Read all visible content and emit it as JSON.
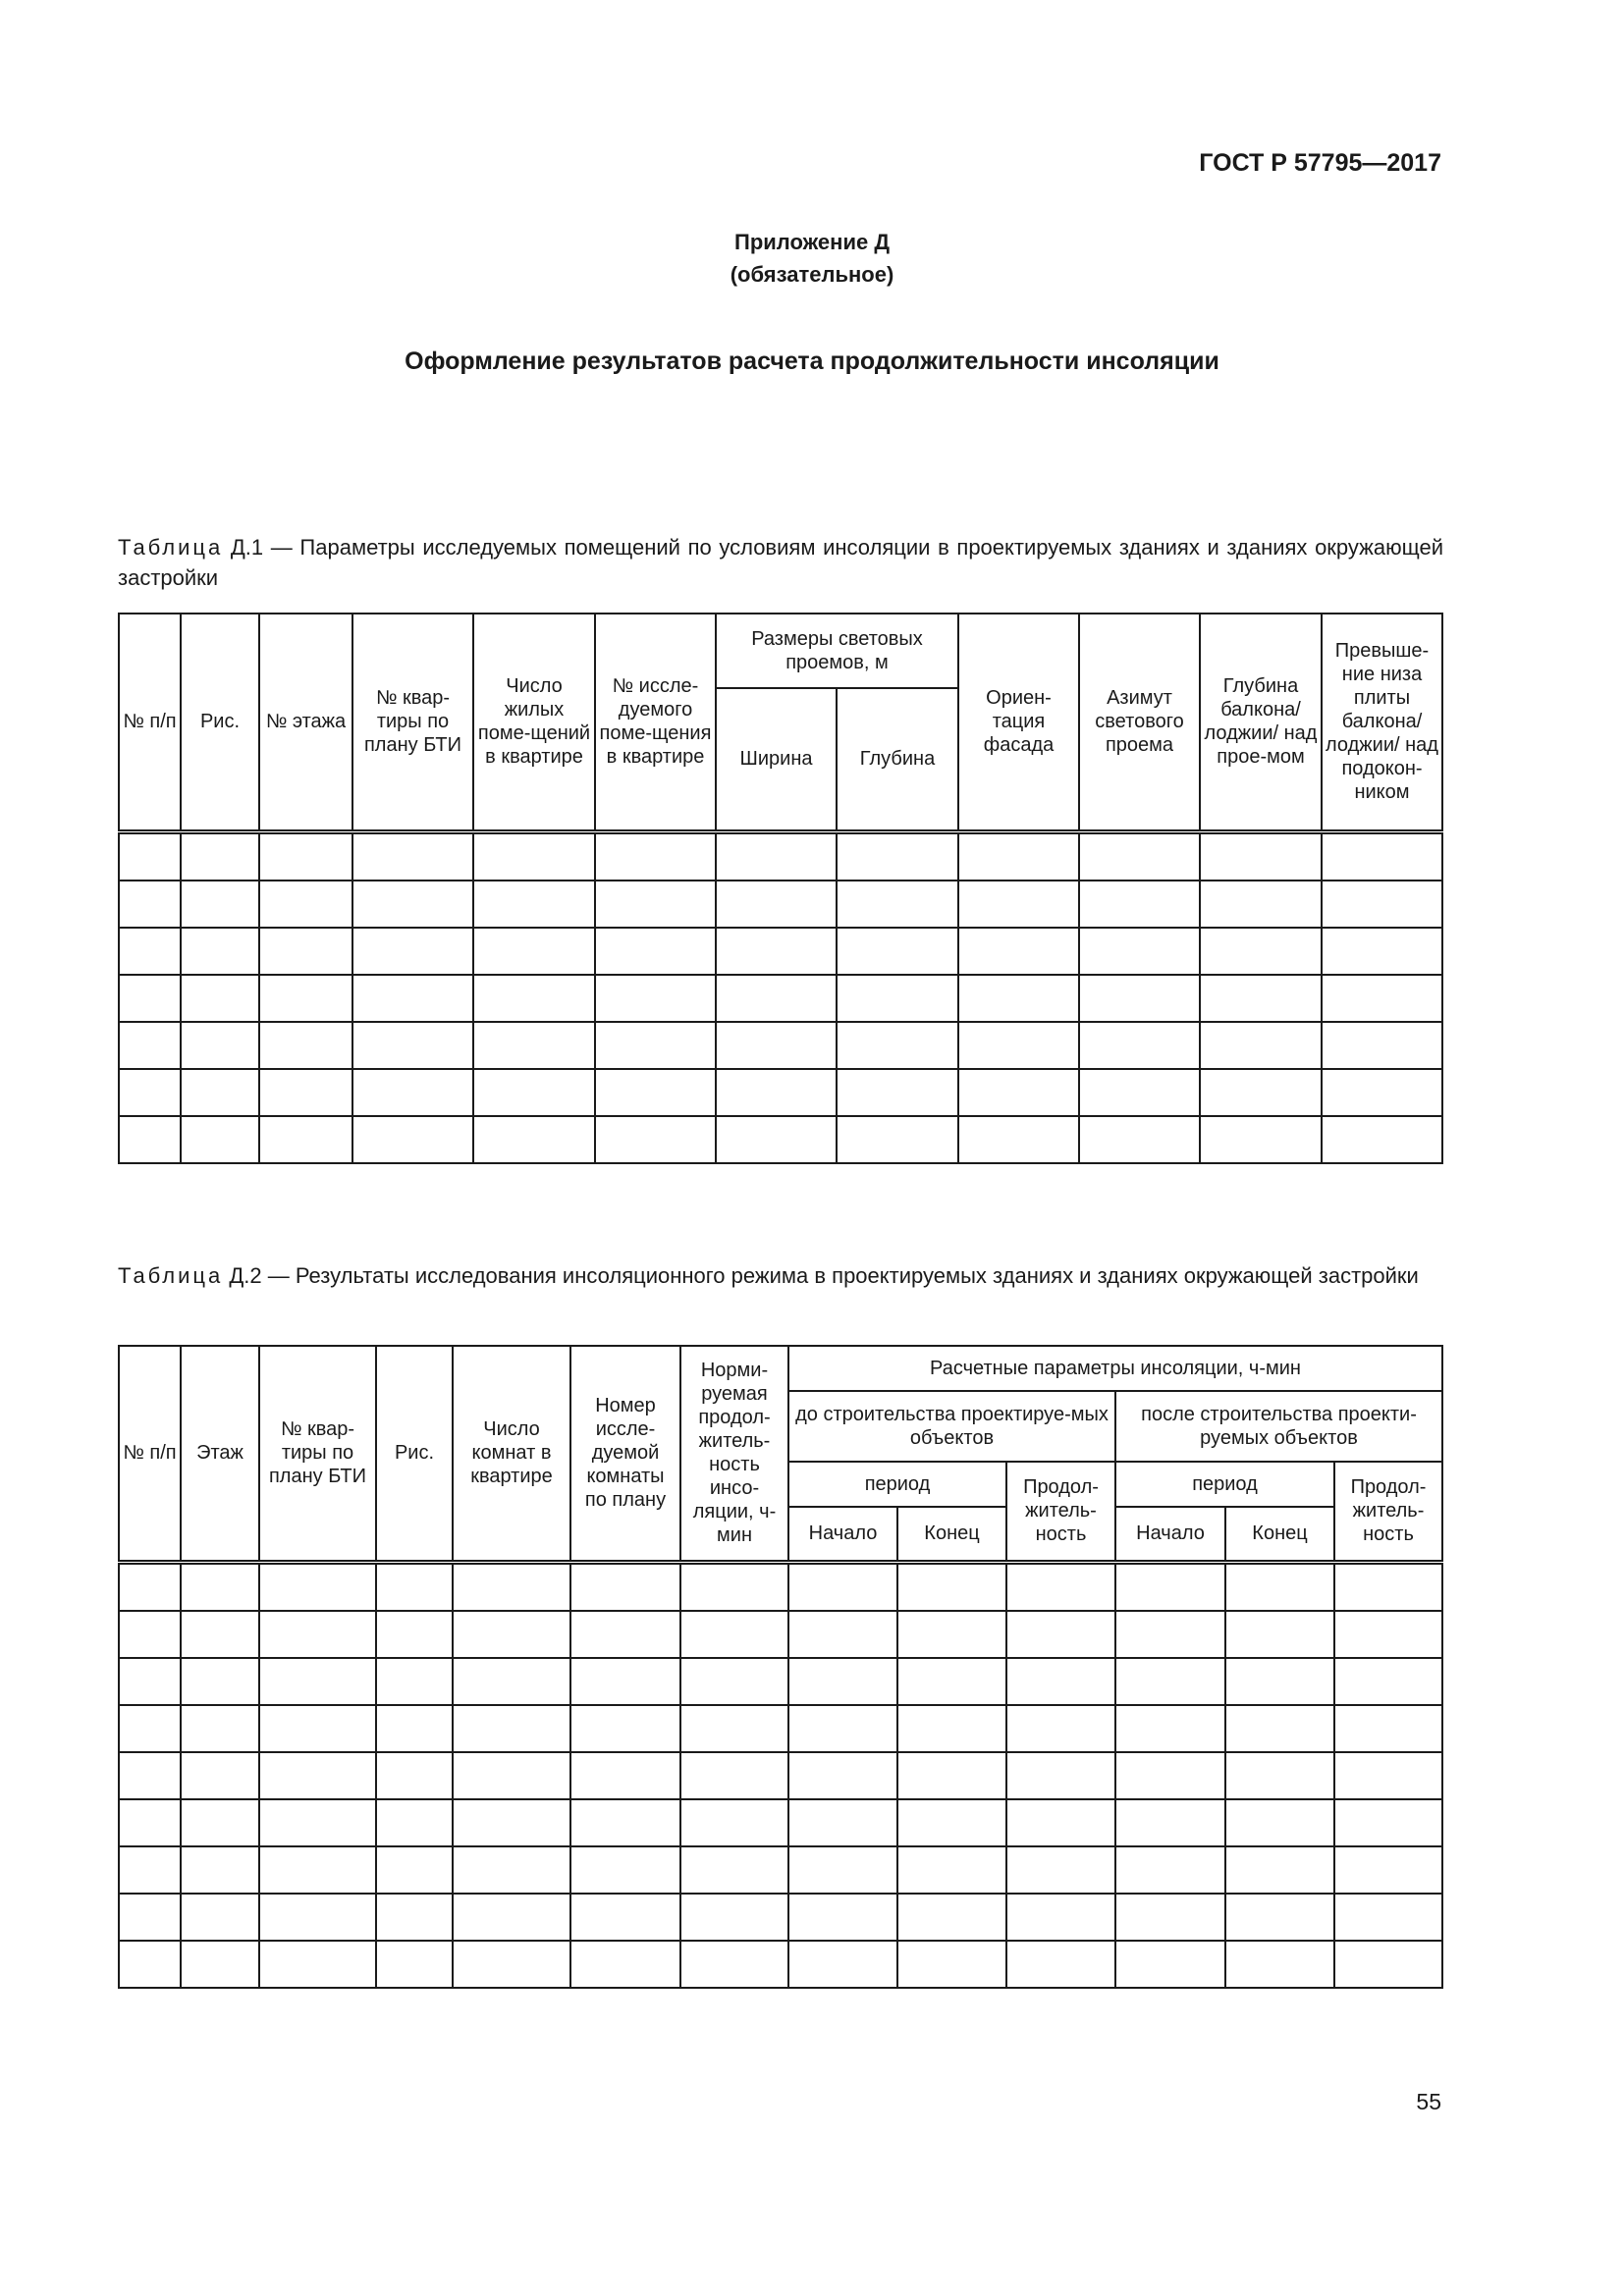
{
  "document_code": "ГОСТ Р 57795—2017",
  "appendix": {
    "title": "Приложение Д",
    "status": "(обязательное)"
  },
  "heading": "Оформление результатов расчета продолжительности инсоляции",
  "table1": {
    "label": "Таблица",
    "caption": " Д.1 — Параметры исследуемых помещений по условиям инсоляции в проектируемых зданиях и зданиях окружающей застройки",
    "headers": {
      "num": "№ п/п",
      "fig": "Рис.",
      "floor": "№ этажа",
      "apartment": "№ квар-тиры по плану БТИ",
      "rooms": "Число жилых поме-щений в квартире",
      "room_no": "№ иссле-дуемого поме-щения в квартире",
      "openings": "Размеры световых проемов, м",
      "width": "Ширина",
      "depth": "Глубина",
      "orientation": "Ориен-тация фасада",
      "azimuth": "Азимут светового проема",
      "balcony_depth": "Глубина балкона/ лоджии/ над прое-мом",
      "excess": "Превыше-ние низа плиты балкона/ лоджии/ над подокон-ником"
    }
  },
  "table2": {
    "label": "Таблица",
    "caption": " Д.2 — Результаты исследования инсоляционного режима в проектируемых зданиях и зданиях окружающей застройки",
    "headers": {
      "num": "№ п/п",
      "floor": "Этаж",
      "apartment": "№ квар-тиры по плану БТИ",
      "fig": "Рис.",
      "rooms": "Число комнат в квартире",
      "room_no": "Номер иссле-дуемой комнаты по плану",
      "normative": "Норми-руемая продол-житель-ность инсо-ляции, ч-мин",
      "calc": "Расчетные параметры инсоляции, ч-мин",
      "before": "до строительства проектируе-мых объектов",
      "after": "после строительства проекти-руемых объектов",
      "period": "период",
      "duration": "Продол-житель-ность",
      "start": "Начало",
      "end": "Конец"
    }
  },
  "page_number": "55"
}
